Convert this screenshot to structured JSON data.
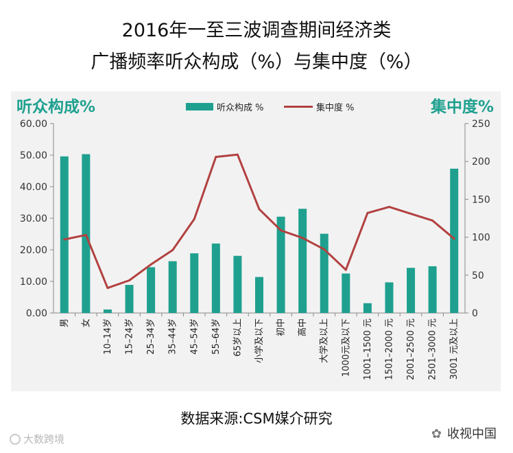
{
  "title_line1": "2016年一至三波调查期间经济类",
  "title_line2": "广播频率听众构成（%）与集中度（%）",
  "source": "数据来源:CSM媒介研究",
  "watermark_left": "大数跨境",
  "watermark_right": "收视中国",
  "colors": {
    "bar": "#1fa08f",
    "line": "#b24140",
    "axis_title": "#1fa08f",
    "grid": "#d9d9d9"
  },
  "icons": {
    "watermark_left": "camera-ring-icon",
    "watermark_right": "wechat-icon"
  },
  "chart_data": {
    "type": "bar+line",
    "left_axis_title": "听众构成%",
    "right_axis_title": "集中度%",
    "categories": [
      "男",
      "女",
      "10–14岁",
      "15–24岁",
      "25–34岁",
      "35–44岁",
      "45–54岁",
      "55–64岁",
      "65岁以上",
      "小学及以下",
      "初中",
      "高中",
      "大学及以上",
      "1000元及以下",
      "1001–1500 元",
      "1501–2000 元",
      "2001–2500 元",
      "2501–3000 元",
      "3001 元及以上"
    ],
    "series": [
      {
        "name": "听众构成 %",
        "type": "bar",
        "axis": "left",
        "values": [
          49.6,
          50.3,
          1.1,
          8.9,
          14.5,
          16.4,
          18.9,
          22.0,
          18.1,
          11.4,
          30.5,
          33.0,
          25.1,
          12.5,
          3.1,
          9.7,
          14.3,
          14.8,
          45.7
        ]
      },
      {
        "name": "集中度 %",
        "type": "line",
        "axis": "right",
        "values": [
          97,
          103,
          33,
          43,
          64,
          83,
          124,
          206,
          209,
          137,
          109,
          99,
          84,
          57,
          132,
          140,
          131,
          122,
          98
        ]
      }
    ],
    "y_left": {
      "range": [
        0,
        60
      ],
      "ticks": [
        "0.00",
        "10.00",
        "20.00",
        "30.00",
        "40.00",
        "50.00",
        "60.00"
      ]
    },
    "y_right": {
      "range": [
        0,
        250
      ],
      "ticks": [
        "0",
        "50",
        "100",
        "150",
        "200",
        "250"
      ]
    },
    "legend_position": "top-center",
    "grid": false
  }
}
